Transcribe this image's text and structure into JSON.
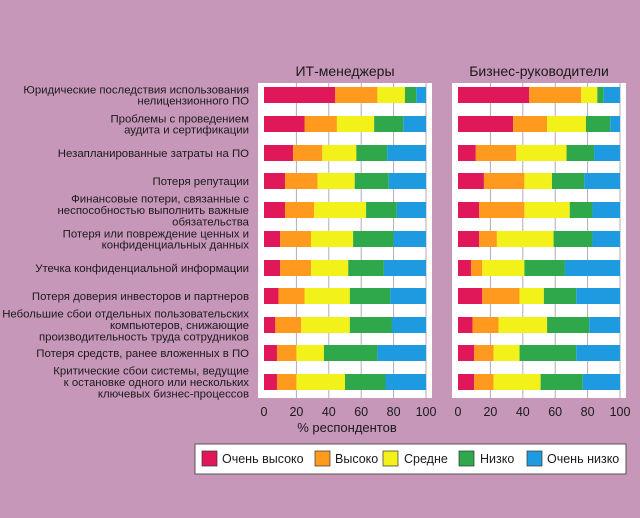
{
  "chart_data": {
    "type": "bar",
    "stacked": true,
    "orientation": "horizontal",
    "panels": [
      {
        "title": "ИТ-менеджеры"
      },
      {
        "title": "Бизнес-руководители"
      }
    ],
    "categories": [
      "Юридические последствия использования нелицензионного ПО",
      "Проблемы с проведением аудита и сертификации",
      "Незапланированные затраты на ПО",
      "Потеря репутации",
      "Финансовые потери, связанные с неспособностью выполнить важные обязательства",
      "Потеря или повреждение ценных и конфиденциальных данных",
      "Утечка конфиденциальной информации",
      "Потеря доверия инвесторов и партнеров",
      "Небольшие сбои отдельных пользовательских компьютеров, снижающие производительность труда сотрудников",
      "Потеря средств, ранее вложенных в ПО",
      "Критические сбои системы, ведущие к остановке одного или нескольких ключевых бизнес-процессов"
    ],
    "category_lines": [
      [
        "Юридические последствия использования",
        "нелицензионного ПО"
      ],
      [
        "Проблемы с проведением",
        "аудита и сертификации"
      ],
      [
        "Незапланированные затраты на ПО"
      ],
      [
        "Потеря репутации"
      ],
      [
        "Финансовые потери, связанные с",
        "неспособностью выполнить важные",
        "обязательства"
      ],
      [
        "Потеря или повреждение ценных и",
        "конфиденциальных данных"
      ],
      [
        "Утечка конфиденциальной информации"
      ],
      [
        "Потеря доверия инвесторов и партнеров"
      ],
      [
        "Небольшие сбои отдельных пользовательских",
        "компьютеров, снижающие",
        "производительность труда сотрудников"
      ],
      [
        "Потеря средств, ранее вложенных в ПО"
      ],
      [
        "Критические сбои системы, ведущие",
        "к остановке одного или нескольких",
        "ключевых бизнес-процессов"
      ]
    ],
    "series": [
      {
        "name": "Очень высоко",
        "color": "#e0185a",
        "it": [
          44,
          25,
          18,
          13,
          13,
          10,
          10,
          9,
          7,
          8,
          8
        ],
        "biz": [
          44,
          34,
          11,
          16,
          13,
          13,
          8,
          15,
          9,
          10,
          10
        ]
      },
      {
        "name": "Высоко",
        "color": "#ff9a1f",
        "it": [
          26,
          20,
          18,
          20,
          18,
          19,
          19,
          16,
          16,
          12,
          12
        ],
        "biz": [
          32,
          21,
          25,
          25,
          28,
          11,
          7,
          23,
          16,
          12,
          12
        ]
      },
      {
        "name": "Средне",
        "color": "#f2f21a",
        "it": [
          17,
          23,
          21,
          23,
          32,
          26,
          23,
          28,
          30,
          17,
          30
        ],
        "biz": [
          10,
          24,
          31,
          17,
          28,
          35,
          26,
          15,
          30,
          16,
          29
        ]
      },
      {
        "name": "Низко",
        "color": "#2ea84a",
        "it": [
          7,
          18,
          19,
          21,
          19,
          25,
          22,
          25,
          26,
          33,
          25
        ],
        "biz": [
          4,
          15,
          17,
          20,
          14,
          24,
          25,
          20,
          26,
          35,
          26
        ]
      },
      {
        "name": "Очень низко",
        "color": "#1e9be0",
        "it": [
          6,
          14,
          24,
          23,
          18,
          20,
          26,
          22,
          21,
          30,
          25
        ],
        "biz": [
          10,
          6,
          16,
          22,
          17,
          17,
          34,
          27,
          19,
          27,
          23
        ]
      }
    ],
    "ticks": [
      "0",
      "20",
      "40",
      "60",
      "80",
      "100"
    ],
    "xlim": [
      0,
      100
    ],
    "xlabel": "% респондентов",
    "legend_position": "bottom",
    "background": "#c797b9"
  }
}
